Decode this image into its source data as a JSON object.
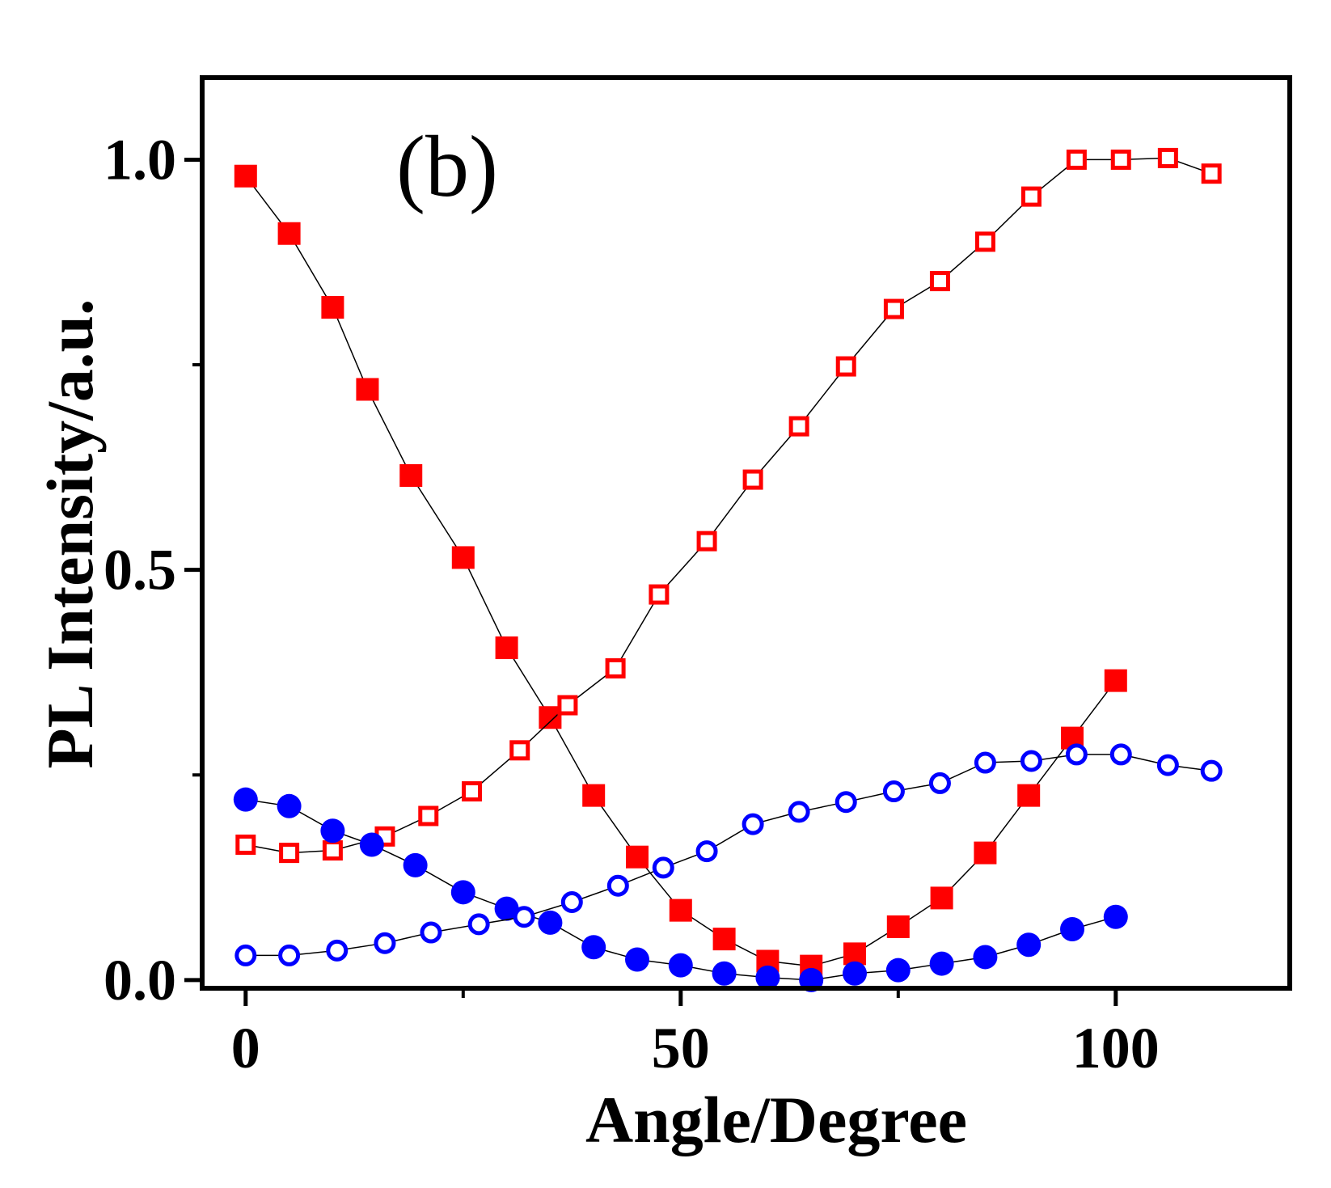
{
  "chart_data": {
    "type": "scatter",
    "panel_label": "(b)",
    "xlabel": "Angle/Degree",
    "ylabel": "PL Intensity/a.u.",
    "xlim": [
      -5,
      120
    ],
    "ylim": [
      -0.01,
      1.1
    ],
    "x_ticks": [
      0,
      50,
      100
    ],
    "x_tick_labels": [
      "0",
      "50",
      "100"
    ],
    "x_minor_ticks": [
      25,
      75
    ],
    "y_ticks": [
      0.0,
      0.5,
      1.0
    ],
    "y_tick_labels": [
      "0.0",
      "0.5",
      "1.0"
    ],
    "y_minor_ticks": [
      0.25,
      0.75
    ],
    "grid": false,
    "legend": "none",
    "colors": {
      "red": "#ff0000",
      "blue": "#0000ff",
      "axis": "#000000",
      "line": "#000000"
    },
    "series": [
      {
        "name": "red-filled-squares",
        "marker": "square",
        "filled": true,
        "color": "#ff0000",
        "x": [
          0,
          5,
          10,
          14,
          19,
          25,
          30,
          35,
          40,
          45,
          50,
          55,
          60,
          65,
          70,
          75,
          80,
          85,
          90,
          95,
          100
        ],
        "y": [
          0.98,
          0.91,
          0.82,
          0.72,
          0.615,
          0.515,
          0.405,
          0.32,
          0.225,
          0.15,
          0.085,
          0.05,
          0.023,
          0.017,
          0.032,
          0.065,
          0.1,
          0.155,
          0.225,
          0.295,
          0.365
        ]
      },
      {
        "name": "red-open-squares",
        "marker": "square",
        "filled": false,
        "color": "#ff0000",
        "x": [
          0,
          5,
          10,
          16,
          21,
          26,
          31.5,
          37,
          42.5,
          47.5,
          53,
          58.3,
          63.6,
          69,
          74.5,
          79.8,
          85,
          90.3,
          95.5,
          100.6,
          106,
          111
        ],
        "y": [
          0.165,
          0.155,
          0.158,
          0.175,
          0.2,
          0.23,
          0.28,
          0.335,
          0.38,
          0.47,
          0.535,
          0.61,
          0.675,
          0.748,
          0.818,
          0.852,
          0.9,
          0.955,
          1.0,
          1.0,
          1.002,
          0.983
        ]
      },
      {
        "name": "blue-filled-circles",
        "marker": "circle",
        "filled": true,
        "color": "#0000ff",
        "x": [
          0,
          5,
          10,
          14.5,
          19.5,
          25,
          30,
          35,
          40,
          45,
          50,
          55,
          60,
          65,
          70,
          75,
          80,
          85,
          90,
          95,
          100
        ],
        "y": [
          0.22,
          0.212,
          0.182,
          0.165,
          0.14,
          0.107,
          0.087,
          0.07,
          0.04,
          0.025,
          0.018,
          0.008,
          0.003,
          0.0,
          0.008,
          0.012,
          0.02,
          0.028,
          0.043,
          0.062,
          0.077
        ]
      },
      {
        "name": "blue-open-circles",
        "marker": "circle",
        "filled": false,
        "color": "#0000ff",
        "x": [
          0,
          5,
          10.5,
          16,
          21.3,
          26.8,
          32,
          37.5,
          42.8,
          48,
          53,
          58.3,
          63.6,
          69,
          74.5,
          79.8,
          85,
          90.3,
          95.5,
          100.6,
          106,
          111
        ],
        "y": [
          0.03,
          0.03,
          0.036,
          0.045,
          0.058,
          0.068,
          0.077,
          0.095,
          0.115,
          0.137,
          0.157,
          0.19,
          0.205,
          0.217,
          0.23,
          0.24,
          0.265,
          0.267,
          0.275,
          0.275,
          0.262,
          0.255
        ]
      }
    ]
  }
}
